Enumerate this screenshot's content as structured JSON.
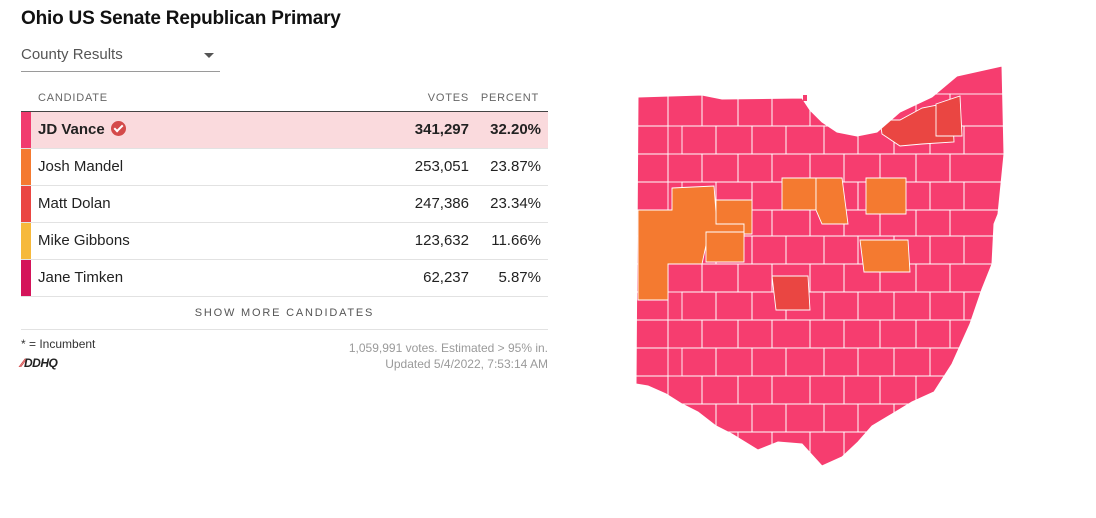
{
  "title": "Ohio US Senate Republican Primary",
  "dropdown": {
    "selected": "County Results"
  },
  "table": {
    "headers": {
      "candidate": "CANDIDATE",
      "votes": "VOTES",
      "percent": "PERCENT"
    },
    "rows": [
      {
        "name": "JD Vance",
        "votes": "341,297",
        "percent": "32.20%",
        "color": "#f13b6e",
        "winner": true
      },
      {
        "name": "Josh Mandel",
        "votes": "253,051",
        "percent": "23.87%",
        "color": "#f47a30",
        "winner": false
      },
      {
        "name": "Matt Dolan",
        "votes": "247,386",
        "percent": "23.34%",
        "color": "#ea4642",
        "winner": false
      },
      {
        "name": "Mike Gibbons",
        "votes": "123,632",
        "percent": "11.66%",
        "color": "#f6b93b",
        "winner": false
      },
      {
        "name": "Jane Timken",
        "votes": "62,237",
        "percent": "5.87%",
        "color": "#d4145a",
        "winner": false
      }
    ],
    "show_more": "SHOW MORE CANDIDATES"
  },
  "footer": {
    "incumbent_note": "* = Incumbent",
    "logo": "DDHQ",
    "votes_note": "1,059,991 votes. Estimated > 95% in.",
    "updated": "Updated 5/4/2022, 7:53:14 AM"
  },
  "map": {
    "colors": {
      "vance": "#f63d6f",
      "mandel": "#f47a30",
      "dolan": "#ea4642"
    }
  }
}
